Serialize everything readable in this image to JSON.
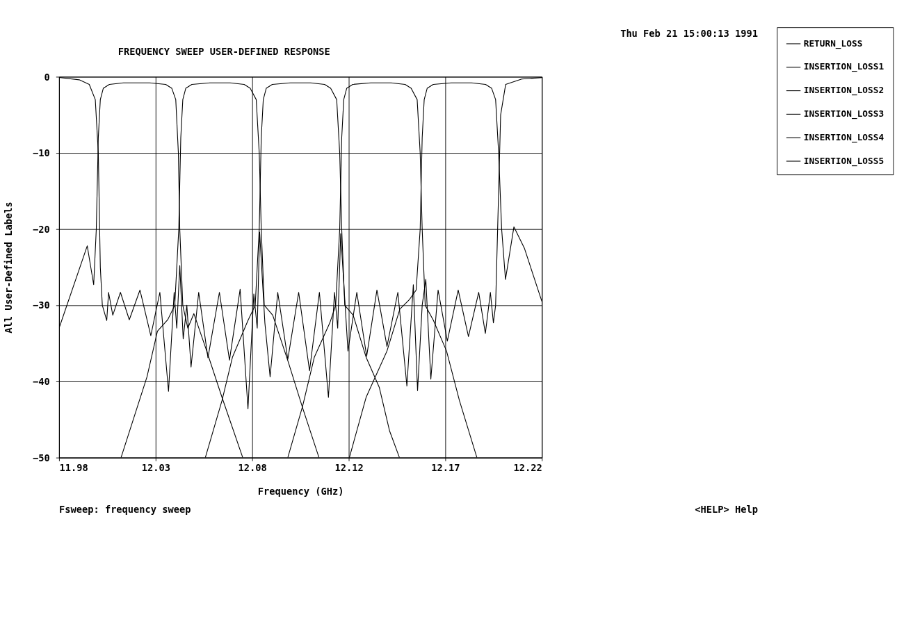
{
  "chart_data": {
    "type": "line",
    "title": "FREQUENCY SWEEP USER-DEFINED RESPONSE",
    "xlabel": "Frequency (GHz)",
    "ylabel": "All User-Defined Labels",
    "xlim": [
      11.98,
      12.22
    ],
    "xticks": [
      11.98,
      {
        "value": 12.028,
        "label": "12.03"
      },
      {
        "value": 12.076,
        "label": "12.08"
      },
      {
        "value": 12.124,
        "label": "12.12"
      },
      {
        "value": 12.172,
        "label": "12.17"
      },
      12.22
    ],
    "ylim": [
      -50,
      0
    ],
    "yticks": [
      -50,
      -40,
      -30,
      -20,
      -10,
      0
    ],
    "grid": true,
    "legend": "right",
    "line_style": "solid",
    "annotations": [
      "Thu Feb 21 15:00:13 1991",
      "Fsweep: frequency sweep",
      "<HELP> Help"
    ],
    "series": [
      {
        "name": "RETURN_LOSS",
        "color": "#000000",
        "x": [
          11.98,
          11.99,
          11.995,
          11.998,
          11.9995,
          12.0005,
          12.0015,
          12.0037,
          12.0046,
          12.0067,
          12.0105,
          12.0149,
          12.0202,
          12.0256,
          12.0301,
          12.0344,
          12.0372,
          12.0385,
          12.04,
          12.0417,
          12.0435,
          12.0456,
          12.0494,
          12.054,
          12.0597,
          12.0647,
          12.07,
          12.0739,
          12.0768,
          12.0785,
          12.0797,
          12.0823,
          12.0849,
          12.0887,
          12.0937,
          12.0991,
          12.1045,
          12.1094,
          12.1139,
          12.1169,
          12.1185,
          12.12,
          12.1236,
          12.128,
          12.1329,
          12.138,
          12.143,
          12.1484,
          12.1529,
          12.1561,
          12.1582,
          12.1605,
          12.1623,
          12.1648,
          12.1684,
          12.173,
          12.1784,
          12.1835,
          12.1886,
          12.1919,
          12.1944,
          12.1959,
          12.197,
          12.1985,
          12.1995,
          12.202,
          12.21,
          12.22
        ],
        "values": [
          -0.1,
          -0.4,
          -1,
          -3,
          -10,
          -25,
          -30,
          -32,
          -28.3,
          -31.3,
          -28.3,
          -31.9,
          -28,
          -34,
          -28.3,
          -41.3,
          -28.3,
          -33,
          -24.8,
          -34.4,
          -30,
          -38.1,
          -28.3,
          -36.9,
          -28.3,
          -37.2,
          -27.9,
          -43.6,
          -28.5,
          -33,
          -20.4,
          -32.3,
          -39.4,
          -28.3,
          -37.1,
          -28.3,
          -38.6,
          -28.3,
          -42.1,
          -28.3,
          -33,
          -20.6,
          -36,
          -28.3,
          -36.7,
          -28,
          -35.4,
          -28.3,
          -40.6,
          -27.3,
          -41.2,
          -30,
          -26.6,
          -39.7,
          -28,
          -34.7,
          -28,
          -34.1,
          -28.3,
          -33.7,
          -28.3,
          -32.3,
          -30,
          -15,
          -5,
          -1,
          -0.3,
          -0.1
        ]
      },
      {
        "name": "INSERTION_LOSS1",
        "color": "#000000",
        "x": [
          11.98,
          11.994,
          11.9972,
          11.9985,
          11.9995,
          12.0005,
          12.002,
          12.005,
          12.012,
          12.025,
          12.033,
          12.036,
          12.038,
          12.0393,
          12.04,
          12.0415,
          12.044,
          12.047,
          12.053,
          12.061,
          12.0713
        ],
        "values": [
          -33,
          -22.2,
          -27.3,
          -20,
          -8,
          -3,
          -1.5,
          -1,
          -0.8,
          -0.8,
          -1,
          -1.5,
          -3,
          -10,
          -20,
          -30,
          -33,
          -31.1,
          -35.7,
          -42.1,
          -50
        ]
      },
      {
        "name": "INSERTION_LOSS2",
        "color": "#000000",
        "x": [
          12.0108,
          12.0237,
          12.0289,
          12.034,
          12.0375,
          12.0395,
          12.0405,
          12.0415,
          12.043,
          12.046,
          12.055,
          12.065,
          12.072,
          12.075,
          12.078,
          12.0795,
          12.0805,
          12.082,
          12.0862,
          12.094,
          12.1011,
          12.1092
        ],
        "values": [
          -50,
          -39.4,
          -33.4,
          -31.9,
          -30,
          -20,
          -8,
          -3,
          -1.5,
          -1,
          -0.8,
          -0.8,
          -1,
          -1.5,
          -3,
          -10,
          -20,
          -30,
          -31.3,
          -37.5,
          -43.5,
          -50
        ]
      },
      {
        "name": "INSERTION_LOSS3",
        "color": "#000000",
        "x": [
          12.0527,
          12.061,
          12.0662,
          12.0739,
          12.0775,
          12.0795,
          12.0805,
          12.0815,
          12.083,
          12.086,
          12.095,
          12.105,
          12.112,
          12.115,
          12.118,
          12.1195,
          12.1205,
          12.122,
          12.1262,
          12.1326,
          12.1392,
          12.1443,
          12.1492
        ],
        "values": [
          -50,
          -42.5,
          -36.8,
          -32,
          -30,
          -20,
          -8,
          -3,
          -1.5,
          -1,
          -0.8,
          -0.8,
          -1,
          -1.5,
          -3,
          -10,
          -20,
          -30,
          -31.3,
          -36.8,
          -40.8,
          -46.5,
          -50
        ]
      },
      {
        "name": "INSERTION_LOSS4",
        "color": "#000000",
        "x": [
          12.0937,
          12.1011,
          12.1069,
          12.1146,
          12.1175,
          12.1195,
          12.1205,
          12.1215,
          12.123,
          12.126,
          12.135,
          12.145,
          12.152,
          12.155,
          12.158,
          12.1595,
          12.1605,
          12.162,
          12.1661,
          12.1726,
          12.179,
          12.1877
        ],
        "values": [
          -50,
          -43.2,
          -36.8,
          -32.3,
          -30,
          -20,
          -8,
          -3,
          -1.5,
          -1,
          -0.8,
          -0.8,
          -1,
          -1.5,
          -3,
          -10,
          -20,
          -30,
          -32,
          -36,
          -42.5,
          -50
        ]
      },
      {
        "name": "INSERTION_LOSS5",
        "color": "#000000",
        "x": [
          12.1243,
          12.1326,
          12.143,
          12.1494,
          12.154,
          12.1575,
          12.1595,
          12.1605,
          12.1615,
          12.163,
          12.166,
          12.175,
          12.185,
          12.192,
          12.195,
          12.197,
          12.1985,
          12.2,
          12.2019,
          12.2061,
          12.2113,
          12.22
        ],
        "values": [
          -50,
          -42.1,
          -36,
          -30.5,
          -29.3,
          -28,
          -20,
          -8,
          -3,
          -1.5,
          -1,
          -0.8,
          -0.8,
          -1,
          -1.5,
          -3,
          -10,
          -20,
          -26.6,
          -19.7,
          -22.5,
          -29.5
        ]
      }
    ]
  }
}
